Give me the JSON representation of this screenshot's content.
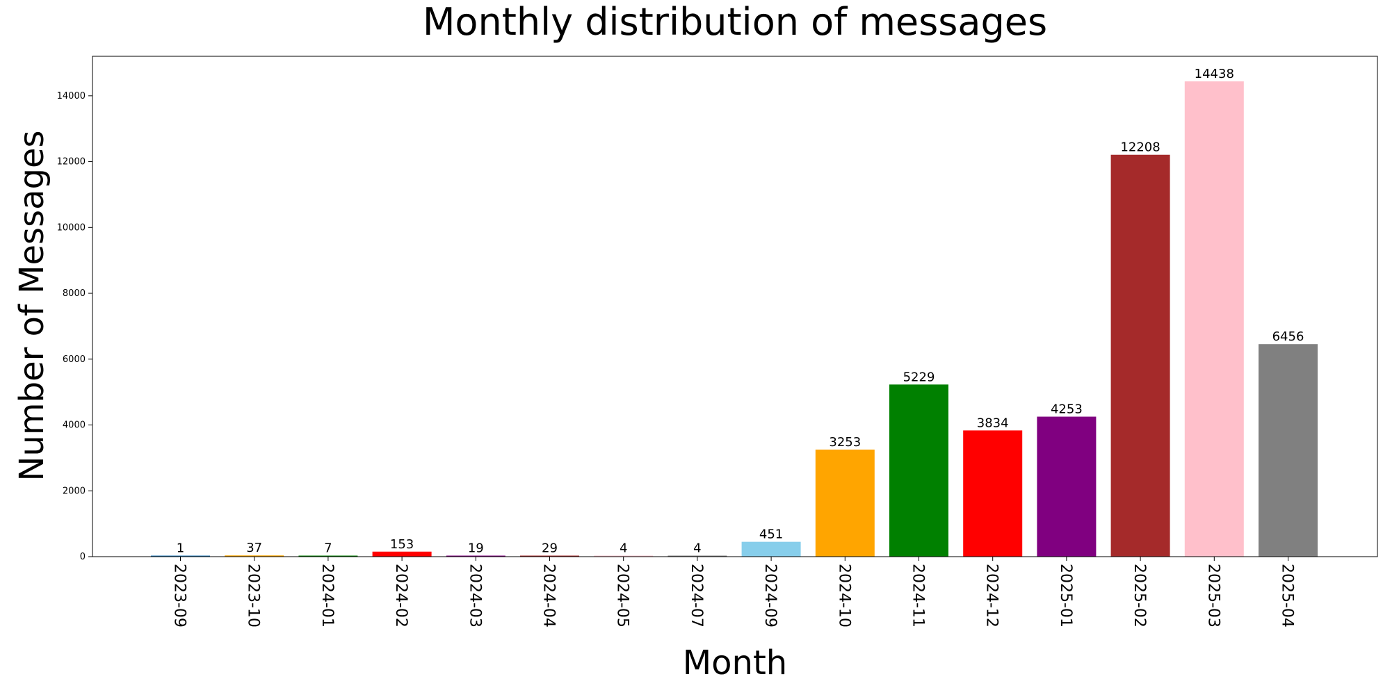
{
  "chart_data": {
    "type": "bar",
    "title": "Monthly distribution of messages",
    "xlabel": "Month",
    "ylabel": "Number of Messages",
    "categories": [
      "2023-09",
      "2023-10",
      "2024-01",
      "2024-02",
      "2024-03",
      "2024-04",
      "2024-05",
      "2024-07",
      "2024-09",
      "2024-10",
      "2024-11",
      "2024-12",
      "2025-01",
      "2025-02",
      "2025-03",
      "2025-04"
    ],
    "values": [
      1,
      37,
      7,
      153,
      19,
      29,
      4,
      4,
      451,
      3253,
      5229,
      3834,
      4253,
      12208,
      14438,
      6456
    ],
    "colors": [
      "#1f77b4",
      "#ffa500",
      "#008000",
      "#ff0000",
      "#800080",
      "#a52a2a",
      "#ffc0cb",
      "#808080",
      "#87ceeb",
      "#ffa500",
      "#008000",
      "#ff0000",
      "#800080",
      "#a52a2a",
      "#ffc0cb",
      "#808080"
    ],
    "ylim": [
      0,
      15200
    ],
    "yticks": [
      0,
      2000,
      4000,
      6000,
      8000,
      10000,
      12000,
      14000
    ],
    "xtick_rotation": "90 degrees clockwise",
    "grid": false,
    "legend": "none"
  }
}
